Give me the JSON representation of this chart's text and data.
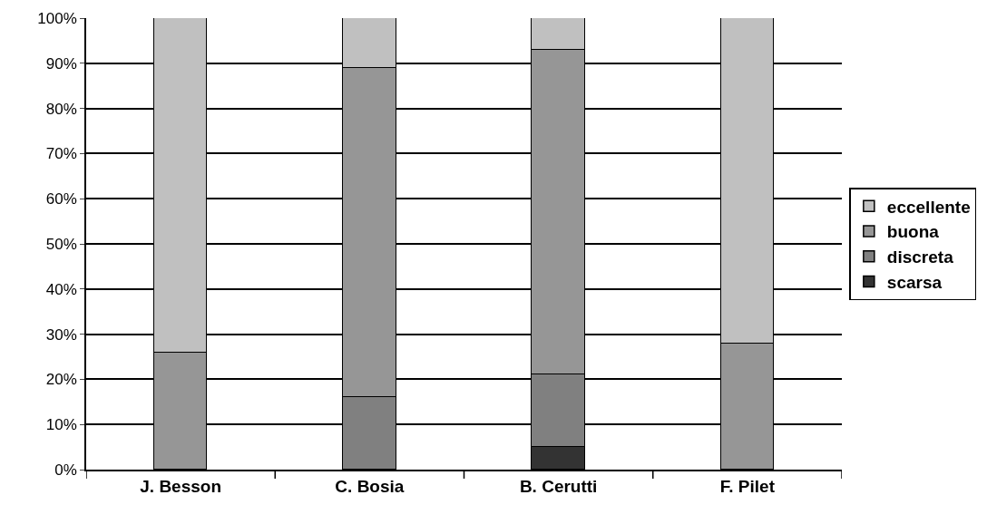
{
  "chart_data": {
    "type": "bar",
    "stacked": true,
    "categories": [
      "J. Besson",
      "C. Bosia",
      "B. Cerutti",
      "F. Pilet"
    ],
    "series": [
      {
        "name": "scarsa",
        "color": "#333333",
        "values": [
          null,
          null,
          5,
          null
        ]
      },
      {
        "name": "discreta",
        "color": "#808080",
        "values": [
          null,
          16,
          16,
          null
        ]
      },
      {
        "name": "buona",
        "color": "#969696",
        "values": [
          26,
          73,
          72,
          28
        ]
      },
      {
        "name": "eccellente",
        "color": "#c0c0c0",
        "values": [
          74,
          11,
          7,
          72
        ]
      }
    ],
    "ylim": [
      0,
      100
    ],
    "yticks": [
      {
        "value": 0,
        "label": "0%"
      },
      {
        "value": 10,
        "label": "10%"
      },
      {
        "value": 20,
        "label": "20%"
      },
      {
        "value": 30,
        "label": "30%"
      },
      {
        "value": 40,
        "label": "40%"
      },
      {
        "value": 50,
        "label": "50%"
      },
      {
        "value": 60,
        "label": "60%"
      },
      {
        "value": 70,
        "label": "70%"
      },
      {
        "value": 80,
        "label": "80%"
      },
      {
        "value": 90,
        "label": "90%"
      },
      {
        "value": 100,
        "label": "100%"
      }
    ],
    "grid": "y",
    "legend": "right"
  }
}
